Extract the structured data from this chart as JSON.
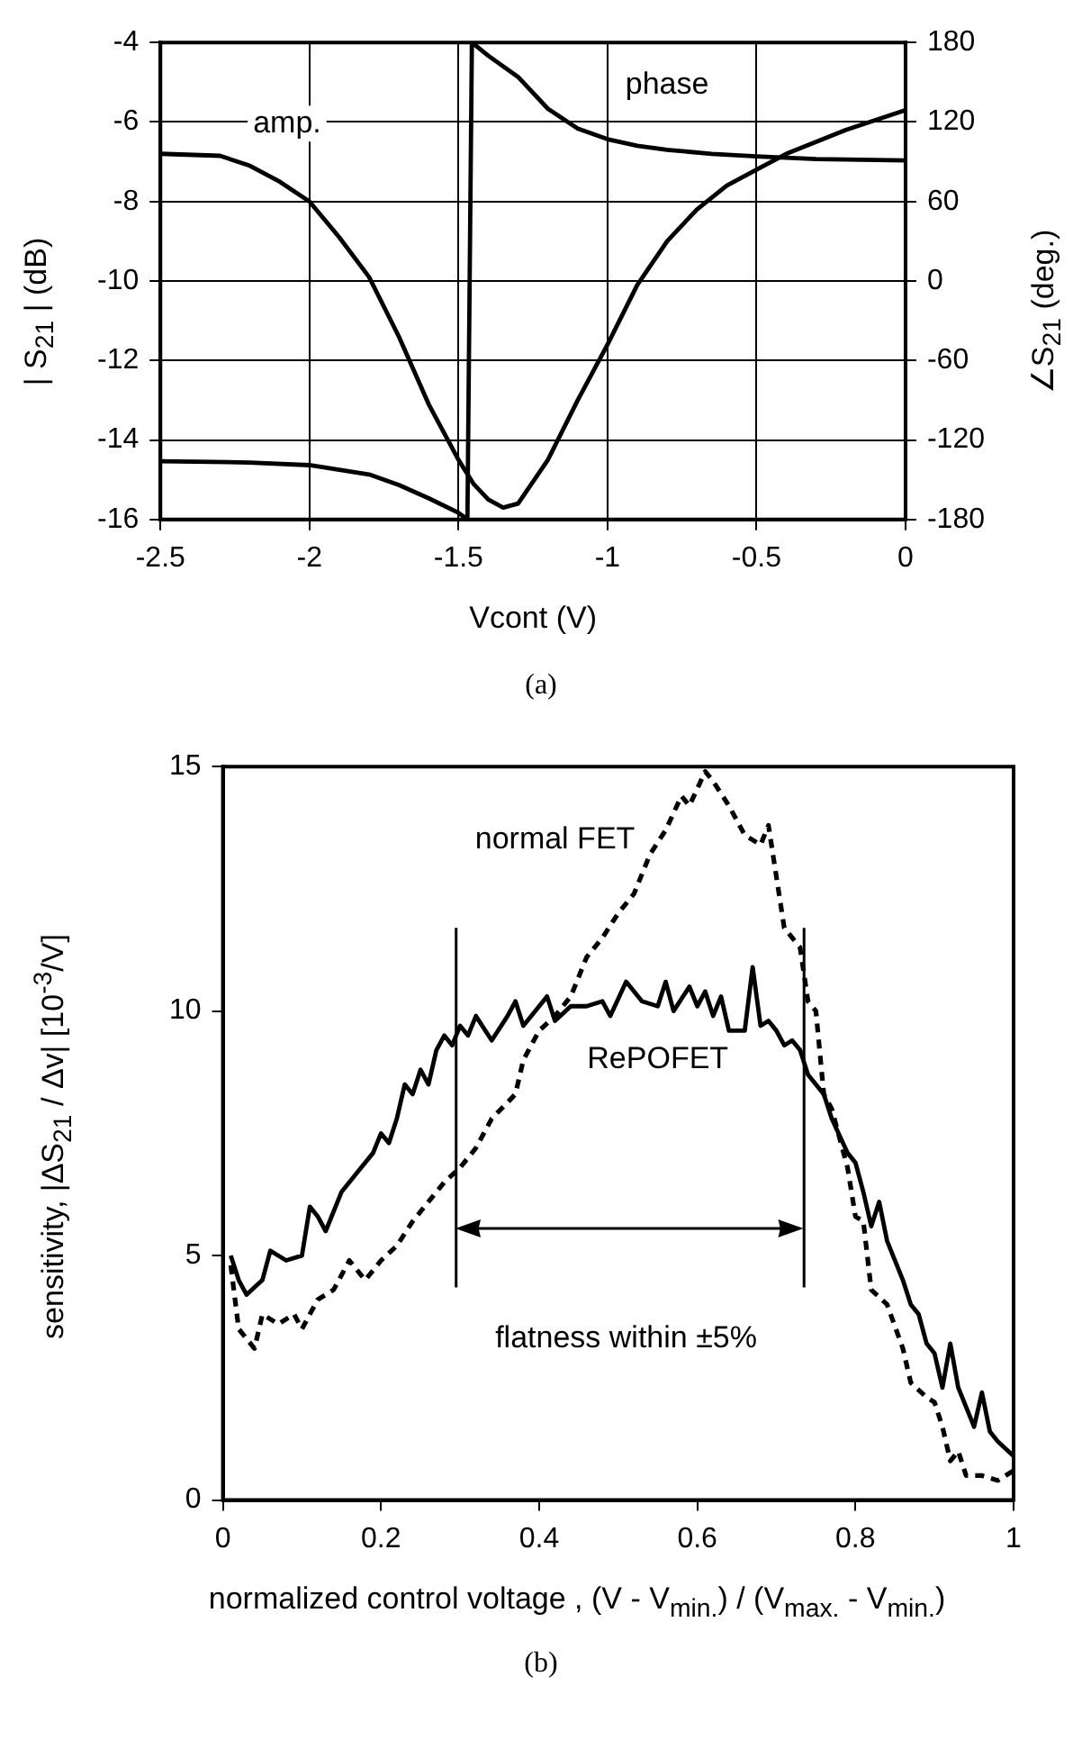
{
  "chart_data": [
    {
      "type": "line",
      "xlabel": "Vcont (V)",
      "ylabel": "| S$_{21}$ |  (dB)",
      "y2label": "∠S$_{21}$ (deg.)",
      "xlim": [
        -2.5,
        0
      ],
      "xticks": [
        -2.5,
        -2,
        -1.5,
        -1,
        -0.5,
        0
      ],
      "ylim": [
        -16,
        -4
      ],
      "yticks": [
        -16,
        -14,
        -12,
        -10,
        -8,
        -6,
        -4
      ],
      "y2lim": [
        -180,
        180
      ],
      "y2ticks": [
        -180,
        -120,
        -60,
        0,
        60,
        120,
        180
      ],
      "grid": true,
      "legend": false,
      "line_style": "solid",
      "marker": "none",
      "series": [
        {
          "name": "amp.",
          "color": "#000000",
          "x": [
            -2.5,
            -2.3,
            -2.2,
            -2.1,
            -2.0,
            -1.9,
            -1.8,
            -1.7,
            -1.6,
            -1.5,
            -1.45,
            -1.4,
            -1.35,
            -1.3,
            -1.2,
            -1.1,
            -1.0,
            -0.9,
            -0.8,
            -0.7,
            -0.6,
            -0.5,
            -0.4,
            -0.3,
            -0.2,
            -0.1,
            0
          ],
          "values": [
            -6.8,
            -6.85,
            -7.1,
            -7.5,
            -8.0,
            -8.9,
            -9.9,
            -11.4,
            -13.1,
            -14.5,
            -15.1,
            -15.5,
            -15.7,
            -15.6,
            -14.5,
            -13.0,
            -11.6,
            -10.1,
            -9.0,
            -8.2,
            -7.6,
            -7.2,
            -6.8,
            -6.5,
            -6.2,
            -5.95,
            -5.7
          ]
        },
        {
          "name": "phase",
          "color": "#000000",
          "axis": "y2",
          "x": [
            -2.5,
            -2.2,
            -2.0,
            -1.8,
            -1.7,
            -1.6,
            -1.5,
            -1.47,
            -1.455,
            -1.4,
            -1.3,
            -1.2,
            -1.1,
            -1.0,
            -0.9,
            -0.8,
            -0.65,
            -0.5,
            -0.3,
            0
          ],
          "values": [
            -136,
            -137,
            -139,
            -146,
            -154,
            -164,
            -175,
            -180,
            180,
            170,
            154,
            130,
            115,
            107,
            102,
            99,
            96,
            94,
            92,
            91
          ]
        }
      ],
      "annotations": [
        "(a)"
      ]
    },
    {
      "type": "line",
      "xlabel": "normalized control voltage ,  (V - V$_{min.}$) / (V$_{max.}$ - V$_{min.}$)",
      "ylabel": "sensitivity,  |ΔS$_{21}$ / Δv|  [10$^{-3}$/V]",
      "xlim": [
        0,
        1
      ],
      "xticks": [
        0,
        0.2,
        0.4,
        0.6,
        0.8,
        1
      ],
      "ylim": [
        0,
        15
      ],
      "yticks": [
        0,
        5,
        10,
        15
      ],
      "grid": false,
      "legend": false,
      "marker": "none",
      "series": [
        {
          "name": "RePOFET",
          "color": "#000000",
          "line_style": "solid",
          "x": [
            0.01,
            0.02,
            0.03,
            0.05,
            0.06,
            0.08,
            0.1,
            0.11,
            0.12,
            0.13,
            0.15,
            0.17,
            0.19,
            0.2,
            0.21,
            0.22,
            0.23,
            0.24,
            0.25,
            0.26,
            0.27,
            0.28,
            0.29,
            0.3,
            0.31,
            0.32,
            0.34,
            0.36,
            0.37,
            0.38,
            0.4,
            0.41,
            0.42,
            0.44,
            0.46,
            0.48,
            0.49,
            0.51,
            0.53,
            0.55,
            0.56,
            0.57,
            0.59,
            0.6,
            0.61,
            0.62,
            0.63,
            0.64,
            0.66,
            0.67,
            0.68,
            0.69,
            0.7,
            0.71,
            0.72,
            0.73,
            0.74,
            0.76,
            0.77,
            0.79,
            0.8,
            0.81,
            0.82,
            0.83,
            0.84,
            0.86,
            0.87,
            0.88,
            0.89,
            0.9,
            0.91,
            0.92,
            0.93,
            0.94,
            0.95,
            0.96,
            0.97,
            0.98,
            1.0
          ],
          "values": [
            5.0,
            4.5,
            4.2,
            4.5,
            5.1,
            4.9,
            5.0,
            6.0,
            5.8,
            5.5,
            6.3,
            6.7,
            7.1,
            7.5,
            7.3,
            7.8,
            8.5,
            8.3,
            8.8,
            8.5,
            9.2,
            9.5,
            9.3,
            9.7,
            9.5,
            9.9,
            9.4,
            9.9,
            10.2,
            9.7,
            10.1,
            10.3,
            9.8,
            10.1,
            10.1,
            10.2,
            9.9,
            10.6,
            10.2,
            10.1,
            10.6,
            10.0,
            10.5,
            10.1,
            10.4,
            9.9,
            10.3,
            9.6,
            9.6,
            10.9,
            9.7,
            9.8,
            9.6,
            9.3,
            9.4,
            9.2,
            8.7,
            8.3,
            7.8,
            7.1,
            6.9,
            6.3,
            5.6,
            6.1,
            5.3,
            4.5,
            4.0,
            3.8,
            3.2,
            3.0,
            2.3,
            3.2,
            2.3,
            1.9,
            1.5,
            2.2,
            1.4,
            1.2,
            0.9
          ]
        },
        {
          "name": "normal FET",
          "color": "#000000",
          "line_style": "dashed",
          "x": [
            0.01,
            0.02,
            0.04,
            0.05,
            0.07,
            0.09,
            0.1,
            0.12,
            0.14,
            0.16,
            0.18,
            0.2,
            0.22,
            0.24,
            0.26,
            0.28,
            0.3,
            0.32,
            0.34,
            0.37,
            0.38,
            0.4,
            0.42,
            0.44,
            0.46,
            0.48,
            0.5,
            0.52,
            0.54,
            0.56,
            0.58,
            0.59,
            0.61,
            0.62,
            0.64,
            0.66,
            0.68,
            0.69,
            0.71,
            0.73,
            0.74,
            0.75,
            0.76,
            0.77,
            0.78,
            0.79,
            0.8,
            0.81,
            0.82,
            0.84,
            0.86,
            0.87,
            0.89,
            0.9,
            0.91,
            0.92,
            0.93,
            0.94,
            0.96,
            0.98,
            1.0
          ],
          "values": [
            4.8,
            3.5,
            3.1,
            3.8,
            3.6,
            3.8,
            3.5,
            4.1,
            4.3,
            4.9,
            4.5,
            4.9,
            5.2,
            5.7,
            6.1,
            6.5,
            6.8,
            7.2,
            7.8,
            8.3,
            9.0,
            9.6,
            9.9,
            10.3,
            11.1,
            11.5,
            12.0,
            12.4,
            13.2,
            13.7,
            14.4,
            14.2,
            14.9,
            14.7,
            14.2,
            13.6,
            13.4,
            13.8,
            11.7,
            11.3,
            10.2,
            10.0,
            8.3,
            8.0,
            7.4,
            6.8,
            5.8,
            5.7,
            4.3,
            4.0,
            3.1,
            2.4,
            2.1,
            2.0,
            1.5,
            0.8,
            1.0,
            0.5,
            0.5,
            0.4,
            0.6
          ]
        }
      ],
      "ref_lines": [
        {
          "axis": "x",
          "value": 0.295
        },
        {
          "axis": "x",
          "value": 0.735
        }
      ],
      "annotations": [
        "flatness within ±5%",
        "(b)"
      ]
    }
  ]
}
